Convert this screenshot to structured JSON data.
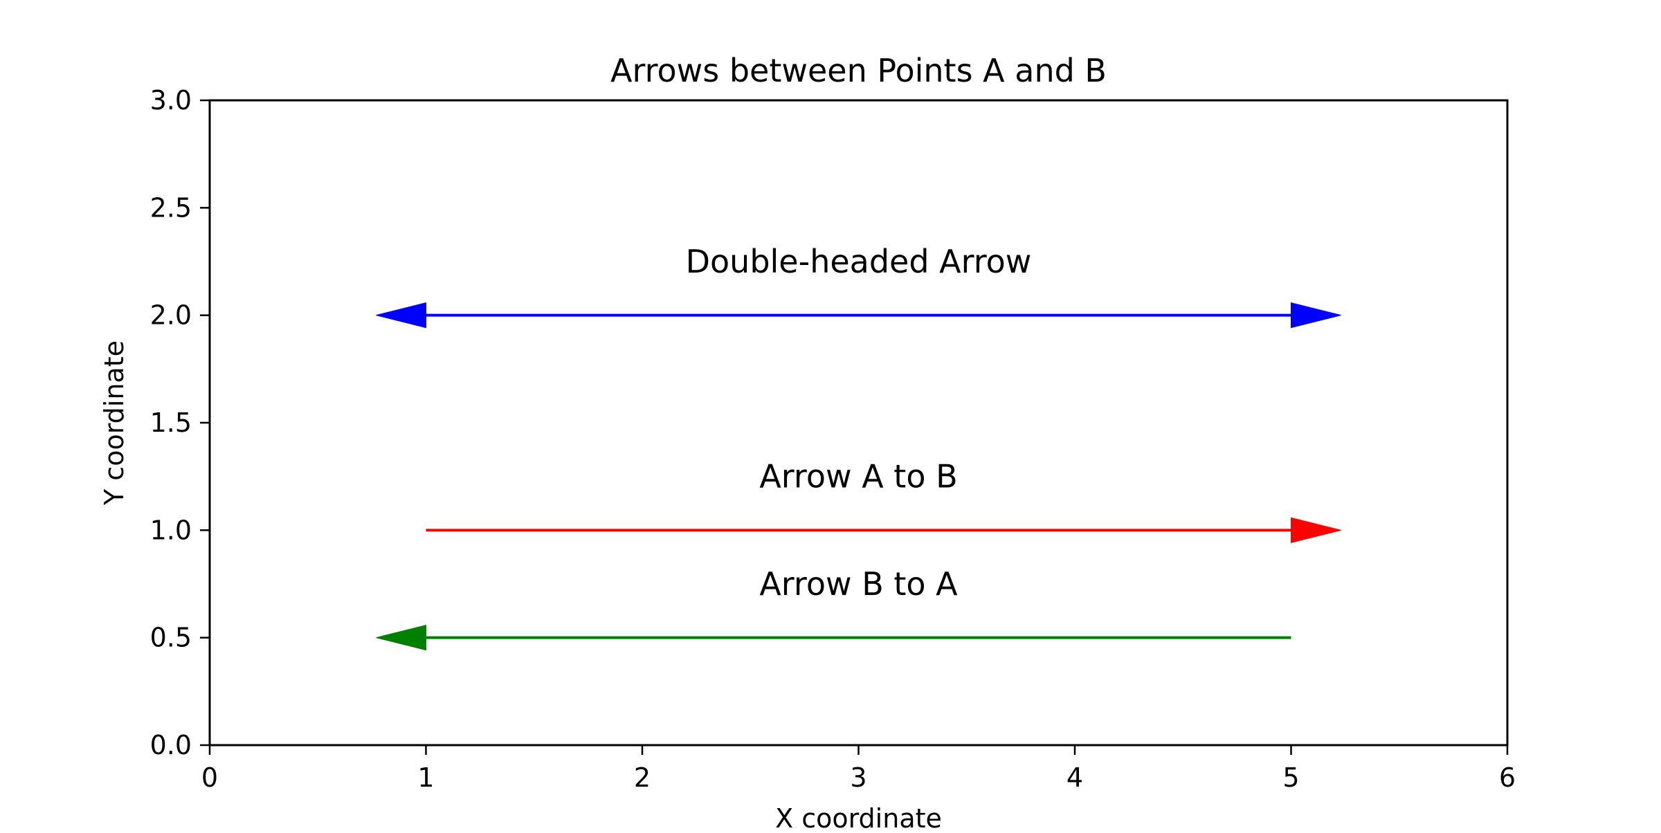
{
  "chart_data": {
    "type": "line",
    "title": "Arrows between Points A and B",
    "xlabel": "X coordinate",
    "ylabel": "Y coordinate",
    "xlim": [
      0,
      6
    ],
    "ylim": [
      0,
      3
    ],
    "x_ticks": [
      0,
      1,
      2,
      3,
      4,
      5,
      6
    ],
    "y_ticks": [
      0.0,
      0.5,
      1.0,
      1.5,
      2.0,
      2.5,
      3.0
    ],
    "x_tick_labels": [
      "0",
      "1",
      "2",
      "3",
      "4",
      "5",
      "6"
    ],
    "y_tick_labels": [
      "0.0",
      "0.5",
      "1.0",
      "1.5",
      "2.0",
      "2.5",
      "3.0"
    ],
    "grid": false,
    "arrows": [
      {
        "from": [
          1,
          2.0
        ],
        "to": [
          5,
          2.0
        ],
        "heads": "both",
        "color": "#0000ff"
      },
      {
        "from": [
          1,
          1.0
        ],
        "to": [
          5,
          1.0
        ],
        "heads": "end",
        "color": "#ff0000"
      },
      {
        "from": [
          5,
          0.5
        ],
        "to": [
          1,
          0.5
        ],
        "heads": "end",
        "color": "#008000"
      }
    ],
    "annotations": [
      {
        "text": "Double-headed Arrow",
        "x": 3,
        "y": 2.25
      },
      {
        "text": "Arrow A to B",
        "x": 3,
        "y": 1.25
      },
      {
        "text": "Arrow B to A",
        "x": 3,
        "y": 0.75
      }
    ]
  }
}
